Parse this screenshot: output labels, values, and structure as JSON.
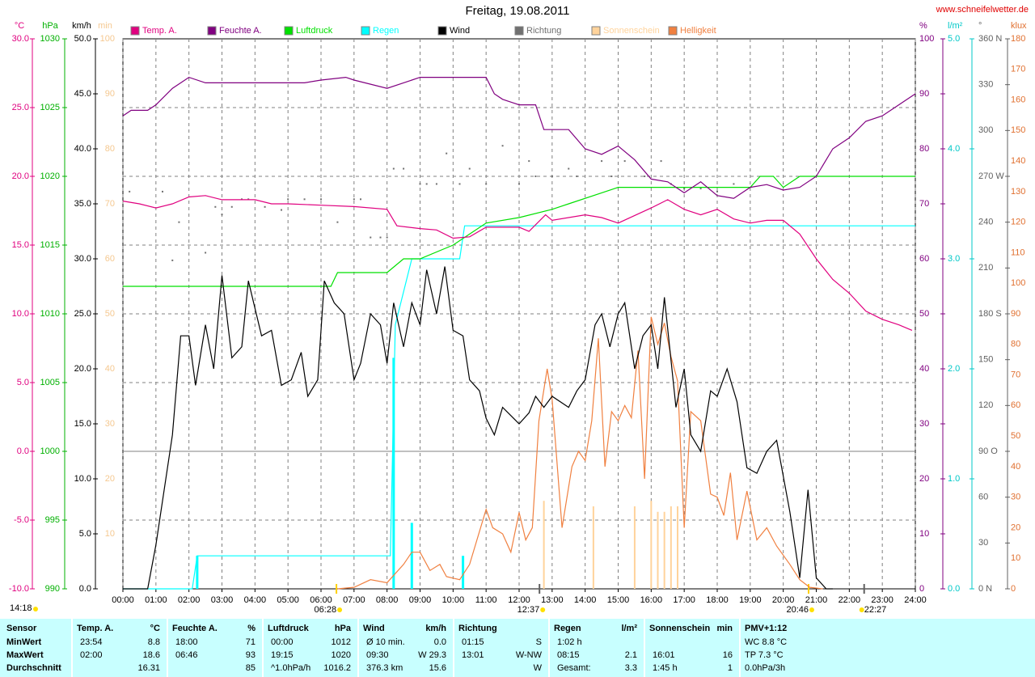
{
  "chart_data": {
    "type": "line",
    "title": "Freitag, 19.08.2011",
    "source": "www.schneifelwetter.de",
    "time": "14:18",
    "grid": true,
    "xlim": [
      0,
      24
    ],
    "xticks": [
      {
        "value": 0,
        "label": "00:00"
      },
      {
        "value": 1,
        "label": "01:00"
      },
      {
        "value": 2,
        "label": "02:00"
      },
      {
        "value": 3,
        "label": "03:00"
      },
      {
        "value": 4,
        "label": "04:00"
      },
      {
        "value": 5,
        "label": "05:00"
      },
      {
        "value": 6,
        "label": "06:00"
      },
      {
        "value": 7,
        "label": "07:00"
      },
      {
        "value": 8,
        "label": "08:00"
      },
      {
        "value": 9,
        "label": "09:00"
      },
      {
        "value": 10,
        "label": "10:00"
      },
      {
        "value": 11,
        "label": "11:00"
      },
      {
        "value": 12,
        "label": "12:00"
      },
      {
        "value": 13,
        "label": "13:00"
      },
      {
        "value": 14,
        "label": "14:00"
      },
      {
        "value": 15,
        "label": "15:00"
      },
      {
        "value": 16,
        "label": "16:00"
      },
      {
        "value": 17,
        "label": "17:00"
      },
      {
        "value": 18,
        "label": "18:00"
      },
      {
        "value": 19,
        "label": "19:00"
      },
      {
        "value": 20,
        "label": "20:00"
      },
      {
        "value": 21,
        "label": "21:00"
      },
      {
        "value": 22,
        "label": "22:00"
      },
      {
        "value": 23,
        "label": "23:00"
      },
      {
        "value": 24,
        "label": "24:00"
      }
    ],
    "markers": [
      {
        "value": 6.467,
        "label": "06:28"
      },
      {
        "value": 12.617,
        "label": "12:37"
      },
      {
        "value": 20.767,
        "label": "20:46"
      },
      {
        "value": 22.45,
        "label": "22:27"
      }
    ],
    "axes": [
      {
        "unit": "°C",
        "side": "left",
        "color": "#e0007f",
        "lim": [
          -10,
          30
        ],
        "grid": true,
        "ticks": [
          {
            "value": 30,
            "label": "30.0"
          },
          {
            "value": 25,
            "label": "25.0"
          },
          {
            "value": 20,
            "label": "20.0"
          },
          {
            "value": 15,
            "label": "15.0"
          },
          {
            "value": 10,
            "label": "10.0"
          },
          {
            "value": 5,
            "label": "5.0"
          },
          {
            "value": 0,
            "label": "0.0"
          },
          {
            "value": -5,
            "label": "-5.0"
          },
          {
            "value": -10,
            "label": "-10.0"
          }
        ]
      },
      {
        "unit": "hPa",
        "side": "left",
        "color": "#00b000",
        "lim": [
          990,
          1030
        ],
        "ticks": [
          1030,
          1025,
          1020,
          1015,
          1010,
          1005,
          1000,
          995,
          990
        ]
      },
      {
        "unit": "km/h",
        "side": "left",
        "color": "#000000",
        "lim": [
          0,
          50
        ],
        "ticks": [
          {
            "value": 50,
            "label": "50.0"
          },
          {
            "value": 45,
            "label": "45.0"
          },
          {
            "value": 40,
            "label": "40.0"
          },
          {
            "value": 35,
            "label": "35.0"
          },
          {
            "value": 30,
            "label": "30.0"
          },
          {
            "value": 25,
            "label": "25.0"
          },
          {
            "value": 20,
            "label": "20.0"
          },
          {
            "value": 15,
            "label": "15.0"
          },
          {
            "value": 10,
            "label": "10.0"
          },
          {
            "value": 5,
            "label": "5.0"
          },
          {
            "value": 0,
            "label": "0.0"
          }
        ]
      },
      {
        "unit": "min",
        "side": "left",
        "color": "#f5c890",
        "lim": [
          0,
          100
        ],
        "ticks": [
          100,
          90,
          80,
          70,
          60,
          50,
          40,
          30,
          20,
          10
        ]
      },
      {
        "unit": "%",
        "side": "right",
        "color": "#800080",
        "lim": [
          0,
          100
        ],
        "ticks": [
          100,
          90,
          80,
          70,
          60,
          50,
          40,
          30,
          20,
          10,
          0
        ]
      },
      {
        "unit": "l/m²",
        "side": "right",
        "color": "#00c8c8",
        "lim": [
          0,
          5
        ],
        "ticks": [
          {
            "value": 5,
            "label": "5.0"
          },
          {
            "value": 4,
            "label": "4.0"
          },
          {
            "value": 3,
            "label": "3.0"
          },
          {
            "value": 2,
            "label": "2.0"
          },
          {
            "value": 1,
            "label": "1.0"
          },
          {
            "value": 0,
            "label": "0.0"
          }
        ]
      },
      {
        "unit": "°",
        "side": "right",
        "color": "#606060",
        "lim": [
          0,
          360
        ],
        "ticks": [
          {
            "value": 360,
            "label": "360 N"
          },
          330,
          300,
          {
            "value": 270,
            "label": "270 W"
          },
          240,
          210,
          {
            "value": 180,
            "label": "180 S"
          },
          150,
          120,
          {
            "value": 90,
            "label": "90 O"
          },
          60,
          30,
          {
            "value": 0,
            "label": "0 N"
          }
        ]
      },
      {
        "unit": "klux",
        "side": "right",
        "color": "#e07030",
        "lim": [
          0,
          180
        ],
        "ticks": [
          180,
          170,
          160,
          150,
          140,
          130,
          120,
          110,
          100,
          90,
          80,
          70,
          60,
          50,
          40,
          30,
          20,
          10,
          0
        ]
      }
    ],
    "series": [
      {
        "name": "Temp. A.",
        "color": "#e0007f",
        "kind": "line",
        "axis": 0,
        "x": [
          0,
          0.5,
          1,
          1.5,
          2,
          2.5,
          3,
          4,
          4.5,
          5,
          6,
          7,
          8,
          8.3,
          9,
          9.5,
          10,
          10.5,
          11,
          12,
          12.3,
          12.8,
          13,
          14,
          14.5,
          15,
          16,
          16.5,
          17,
          17.5,
          18,
          18.5,
          19,
          19.5,
          20,
          20.5,
          21,
          21.5,
          22,
          22.5,
          23,
          23.5,
          23.9
        ],
        "values": [
          18.2,
          18.0,
          17.7,
          18.0,
          18.5,
          18.6,
          18.3,
          18.3,
          18.0,
          18.0,
          17.9,
          17.8,
          17.6,
          16.4,
          16.2,
          16.1,
          15.5,
          15.6,
          16.3,
          16.3,
          16.0,
          17.2,
          16.8,
          17.2,
          17.0,
          16.6,
          17.7,
          18.3,
          17.6,
          17.2,
          17.6,
          16.9,
          16.6,
          16.8,
          16.8,
          15.8,
          14.0,
          12.5,
          11.5,
          10.2,
          9.6,
          9.2,
          8.8
        ]
      },
      {
        "name": "Feuchte A.",
        "color": "#800080",
        "kind": "line",
        "axis": 4,
        "x": [
          0,
          0.25,
          0.75,
          1,
          1.5,
          2,
          2.5,
          3,
          5.5,
          6,
          6.75,
          7,
          8,
          8.5,
          9,
          11,
          11.25,
          11.5,
          12,
          12.5,
          12.75,
          13.5,
          14,
          14.5,
          15,
          15.5,
          16,
          16.5,
          17,
          17.5,
          18,
          18.5,
          19,
          19.5,
          20,
          20.5,
          21,
          21.5,
          22,
          22.5,
          23,
          23.5,
          24
        ],
        "values": [
          86,
          87,
          87,
          88,
          91,
          93,
          92,
          92,
          92,
          92.5,
          93,
          92.5,
          91,
          92,
          93,
          93,
          90,
          89,
          88,
          88,
          83.5,
          83.5,
          80,
          79,
          80.5,
          78,
          74.5,
          74,
          72,
          74,
          71.5,
          71,
          73,
          73.5,
          72.5,
          73,
          75,
          80,
          82,
          85,
          86,
          88,
          90
        ]
      },
      {
        "name": "Luftdruck",
        "color": "#00e000",
        "kind": "line",
        "axis": 1,
        "x": [
          0,
          6.3,
          6.5,
          8,
          8.5,
          9,
          10,
          10.5,
          11,
          12,
          13,
          13.5,
          14.5,
          15,
          19,
          19.3,
          19.7,
          20,
          20.5,
          24
        ],
        "values": [
          1012,
          1012,
          1013,
          1013,
          1014,
          1014,
          1015,
          1015.8,
          1016.6,
          1017,
          1017.6,
          1018,
          1018.8,
          1019.2,
          1019.2,
          1020,
          1020,
          1019.2,
          1020,
          1020
        ]
      },
      {
        "name": "Regen",
        "color": "#00ffff",
        "kind": "line",
        "axis": 5,
        "x": [
          0,
          2.1,
          2.25,
          8.1,
          8.25,
          8.75,
          10.2,
          10.35,
          24
        ],
        "values": [
          0,
          0,
          0.3,
          0.3,
          2.4,
          3.0,
          3.0,
          3.3,
          3.3
        ],
        "bars": {
          "x": [
            2.25,
            8.2,
            8.75,
            10.3
          ],
          "values": [
            0.3,
            2.1,
            0.6,
            0.3
          ]
        }
      },
      {
        "name": "Wind",
        "color": "#000000",
        "kind": "line",
        "axis": 2,
        "x": [
          0,
          0.75,
          1,
          1.5,
          1.75,
          2,
          2.2,
          2.5,
          2.75,
          3,
          3.3,
          3.6,
          3.8,
          4.2,
          4.5,
          4.8,
          5.1,
          5.4,
          5.6,
          5.9,
          6.1,
          6.4,
          6.7,
          7,
          7.2,
          7.5,
          7.8,
          8,
          8.2,
          8.5,
          8.75,
          9,
          9.2,
          9.5,
          9.75,
          10,
          10.3,
          10.5,
          10.8,
          11,
          11.25,
          11.5,
          12,
          12.3,
          12.5,
          12.75,
          13,
          13.5,
          13.75,
          14,
          14.3,
          14.5,
          14.75,
          15,
          15.2,
          15.5,
          15.75,
          16,
          16.2,
          16.4,
          16.75,
          17,
          17.2,
          17.5,
          17.8,
          18,
          18.3,
          18.6,
          18.9,
          19.2,
          19.5,
          19.8,
          20.2,
          20.5,
          20.75,
          21,
          21.3,
          21.5
        ],
        "values": [
          0,
          0,
          4,
          14,
          23,
          23,
          18.5,
          24,
          20,
          28.5,
          21,
          22,
          28,
          23,
          23.5,
          18.5,
          19,
          21.5,
          17.5,
          19,
          28,
          26,
          25,
          19,
          20.5,
          25,
          24,
          20.5,
          26,
          22,
          26,
          24,
          29,
          25,
          29.3,
          23.5,
          23,
          19,
          18,
          15.5,
          14,
          16.5,
          15,
          16,
          17.5,
          16.5,
          17.5,
          16.5,
          18,
          19,
          24,
          25,
          22,
          25,
          26,
          20,
          23,
          24,
          20,
          26.5,
          16.5,
          20,
          14,
          12.5,
          18,
          17.5,
          20,
          17,
          11,
          10.5,
          12.5,
          13.5,
          7,
          1,
          9,
          1,
          0,
          0
        ]
      },
      {
        "name": "Richtung",
        "color": "#707070",
        "kind": "dots",
        "axis": 6,
        "x": [
          0.2,
          1.2,
          1.5,
          1.7,
          2.5,
          2.8,
          3,
          3.3,
          3.6,
          3.8,
          4.3,
          4.8,
          5,
          5.5,
          6,
          6.5,
          7,
          7.2,
          7.5,
          7.8,
          8,
          8.2,
          8.5,
          9,
          9.2,
          9.5,
          9.8,
          10.2,
          10.5,
          11,
          11.5,
          12,
          12.3,
          12.5,
          13,
          13.5,
          13.75,
          14.5,
          14.8,
          15.2,
          15.8,
          16.3,
          16.6,
          17,
          17.5,
          18,
          18.5
        ],
        "values": [
          260,
          260,
          215,
          240,
          220,
          250,
          245,
          250,
          255,
          255,
          250,
          248,
          255,
          255,
          255,
          240,
          255,
          255,
          230,
          230,
          230,
          275,
          275,
          265,
          265,
          265,
          285,
          265,
          275,
          265,
          290,
          265,
          280,
          270,
          270,
          275,
          270,
          280,
          270,
          280,
          270,
          280,
          265,
          262,
          262,
          260,
          265
        ]
      },
      {
        "name": "Sonnenschein",
        "color": "#ffd39b",
        "kind": "bar",
        "axis": 3,
        "x": [
          12.75,
          14.25,
          15.5,
          16.0,
          16.2,
          16.4,
          16.6,
          16.8
        ],
        "values": [
          16,
          15,
          15,
          16,
          14,
          14,
          15,
          15
        ]
      },
      {
        "name": "Helligkeit",
        "color": "#f08040",
        "kind": "line",
        "axis": 7,
        "x": [
          6.5,
          7,
          7.5,
          8,
          8.5,
          8.75,
          9,
          9.3,
          9.6,
          9.8,
          10.2,
          10.5,
          11,
          11.2,
          11.5,
          11.75,
          12,
          12.2,
          12.4,
          12.6,
          12.85,
          13,
          13.3,
          13.6,
          13.8,
          14,
          14.2,
          14.4,
          14.6,
          14.8,
          15,
          15.2,
          15.4,
          15.6,
          15.8,
          16,
          16.2,
          16.4,
          16.6,
          16.8,
          17,
          17.2,
          17.5,
          17.8,
          18,
          18.2,
          18.4,
          18.6,
          18.9,
          19.2,
          19.5,
          19.8,
          20.2,
          20.5,
          20.8,
          21.2
        ],
        "values": [
          0,
          0.5,
          3,
          2,
          8,
          12,
          12,
          6,
          8,
          4,
          3,
          8,
          26,
          20,
          18,
          12,
          25,
          16,
          20,
          55,
          72,
          62,
          20,
          40,
          45,
          42,
          55,
          82,
          40,
          58,
          55,
          60,
          56,
          78,
          36,
          89,
          80,
          87,
          76,
          68,
          20,
          58,
          55,
          31,
          30,
          24,
          38,
          16,
          32,
          16,
          20,
          14,
          8,
          3,
          0.5,
          0
        ]
      }
    ]
  },
  "table": {
    "columns": [
      {
        "title": "Sensor"
      },
      {
        "title": "Temp. A.",
        "unit": "°C"
      },
      {
        "title": "Feuchte A.",
        "unit": "%"
      },
      {
        "title": "Luftdruck",
        "unit": "hPa"
      },
      {
        "title": "Wind",
        "unit": "km/h"
      },
      {
        "title": "Richtung"
      },
      {
        "title": "Regen",
        "unit": "l/m²"
      },
      {
        "title": "Sonnenschein",
        "unit": "min"
      },
      {
        "title": "PMV+1:12"
      }
    ],
    "rows": [
      {
        "label": "MinWert",
        "cells": [
          [
            "23:54",
            "8.8"
          ],
          [
            "18:00",
            "71"
          ],
          [
            "00:00",
            "1012"
          ],
          [
            "Ø 10 min.",
            "0.0"
          ],
          [
            "01:15",
            "S"
          ],
          [
            "1:02 h",
            null
          ],
          [
            null,
            null
          ],
          [
            "WC 8.8 °C"
          ]
        ]
      },
      {
        "label": "MaxWert",
        "cells": [
          [
            "02:00",
            "18.6"
          ],
          [
            "06:46",
            "93"
          ],
          [
            "19:15",
            "1020"
          ],
          [
            "09:30",
            "W 29.3"
          ],
          [
            "13:01",
            "W-NW"
          ],
          [
            "08:15",
            "2.1"
          ],
          [
            "16:01",
            "16"
          ],
          [
            "TP 7.3 °C"
          ]
        ]
      },
      {
        "label": "Durchschnitt",
        "cells": [
          [
            null,
            "16.31"
          ],
          [
            null,
            "85"
          ],
          [
            "^1.0hPa/h",
            "1016.2"
          ],
          [
            "376.3 km",
            "15.6"
          ],
          [
            null,
            "W"
          ],
          [
            "Gesamt:",
            "3.3"
          ],
          [
            "1:45 h",
            "1"
          ],
          [
            "0.0hPa/3h"
          ]
        ]
      }
    ]
  }
}
